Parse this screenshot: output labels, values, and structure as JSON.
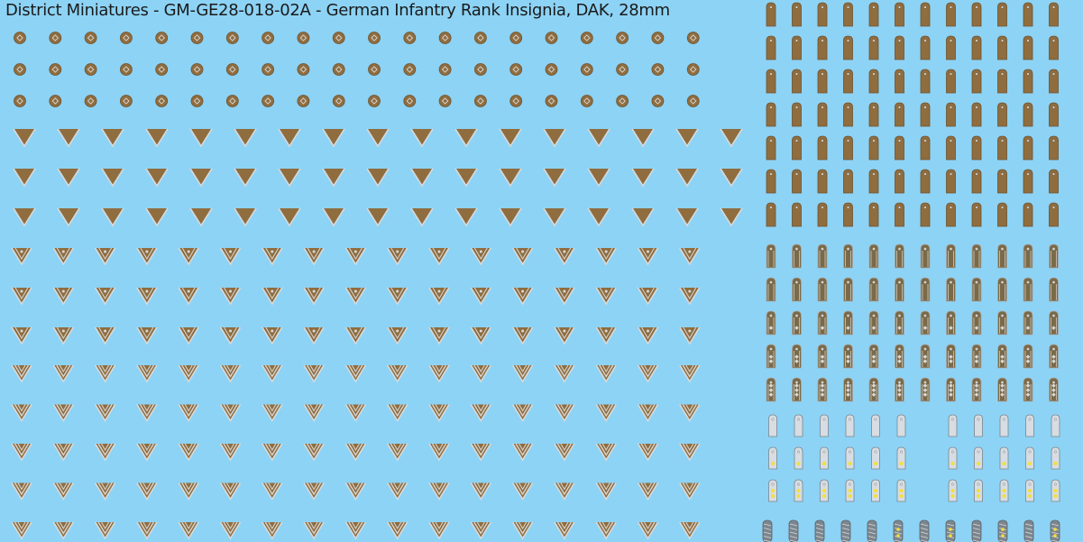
{
  "title": "District Miniatures - GM-GE28-018-02A - German Infantry Rank Insignia, DAK, 28mm",
  "colors": {
    "background": "#8dd3f5",
    "khaki": "#8f6d3f",
    "khaki_dark": "#6f5330",
    "silver": "#d9d9d9",
    "silver_dark": "#a8a8a8",
    "grey_strap": "#d7dde2",
    "grey_strap_dark": "#7c868e",
    "pip_yellow": "#f2e03a",
    "text": "#1a1a1a"
  },
  "decals": [
    {
      "kind": "round-badge",
      "icon": "roundel-badge-icon",
      "rows": 3,
      "cols": 20
    },
    {
      "kind": "chevron-plain",
      "icon": "chevron-icon",
      "rows": 3,
      "cols": 17
    },
    {
      "kind": "chevron-star",
      "icon": "chevron-star-icon",
      "rows": 3,
      "cols": 17
    },
    {
      "kind": "chevron-double",
      "icon": "double-chevron-icon",
      "rows": 5,
      "cols": 17
    },
    {
      "kind": "khaki-strap",
      "icon": "khaki-shoulder-strap-icon",
      "rows": 7,
      "cols": 12
    },
    {
      "kind": "brown-strap-trim",
      "icon": "trimmed-shoulder-strap-icon",
      "rows": 5,
      "cols": 12
    },
    {
      "kind": "grey-strap",
      "icon": "grey-shoulder-strap-icon",
      "rows": 3,
      "cols": 12
    },
    {
      "kind": "braided-strap",
      "icon": "braided-shoulder-strap-icon",
      "rows": 1,
      "cols": 12
    }
  ]
}
